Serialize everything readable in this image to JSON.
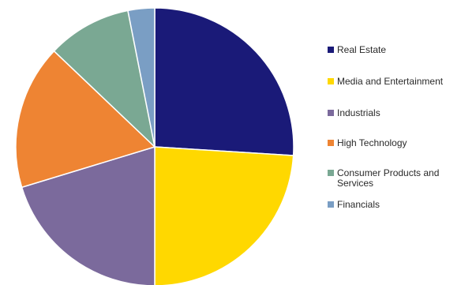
{
  "chart_data": {
    "type": "pie",
    "title": "",
    "slices": [
      {
        "label": "Real Estate",
        "value": 26.0,
        "color": "#1a1a78"
      },
      {
        "label": "Media and Entertainment",
        "value": 24.0,
        "color": "#ffd800"
      },
      {
        "label": "Industrials",
        "value": 20.3,
        "color": "#7b6a9c"
      },
      {
        "label": "High Technology",
        "value": 16.8,
        "color": "#ee8433"
      },
      {
        "label": "Consumer Products and Services",
        "value": 9.8,
        "color": "#7aa893"
      },
      {
        "label": "Financials",
        "value": 3.1,
        "color": "#7a9ec4"
      }
    ],
    "legend_position": "right"
  }
}
